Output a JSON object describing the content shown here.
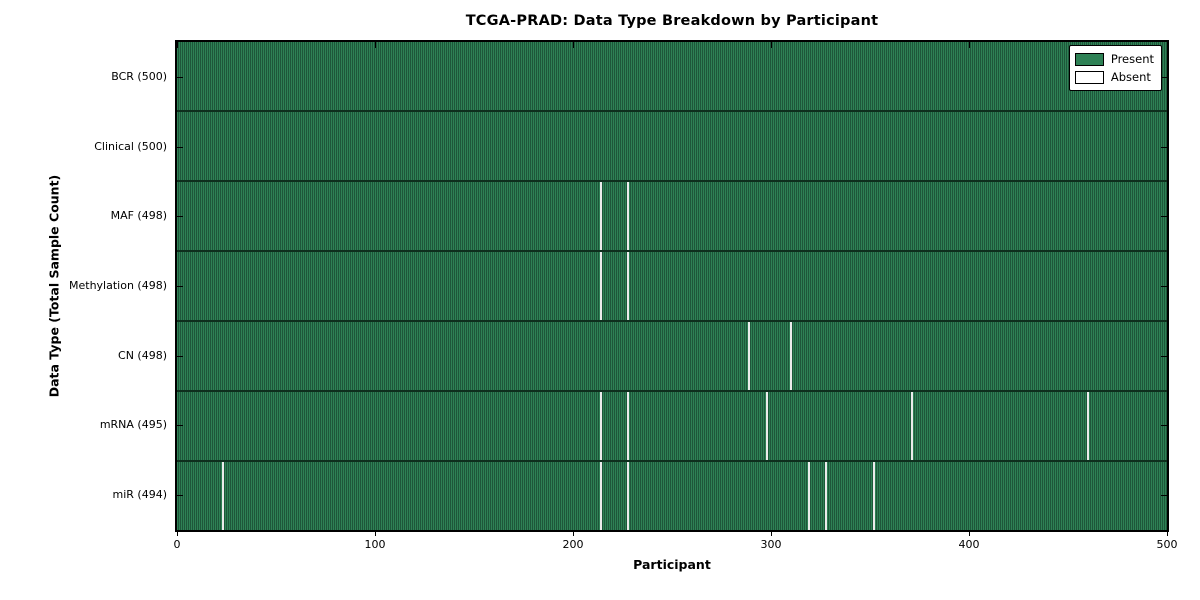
{
  "chart_data": {
    "type": "heatmap",
    "title": "TCGA-PRAD: Data Type Breakdown by Participant",
    "xlabel": "Participant",
    "ylabel": "Data Type (Total Sample Count)",
    "x_min": 0,
    "x_max": 500,
    "x_ticks": [
      0,
      100,
      200,
      300,
      400,
      500
    ],
    "grid": false,
    "legend": {
      "position": "upper-right",
      "entries": [
        {
          "label": "Present",
          "color": "#2e8155"
        },
        {
          "label": "Absent",
          "color": "#ffffff"
        }
      ]
    },
    "rows": [
      {
        "label": "BCR (500)",
        "total": 500,
        "absent_participants": []
      },
      {
        "label": "Clinical (500)",
        "total": 500,
        "absent_participants": []
      },
      {
        "label": "MAF (498)",
        "total": 498,
        "absent_participants": [
          214,
          228
        ]
      },
      {
        "label": "Methylation (498)",
        "total": 498,
        "absent_participants": [
          214,
          228
        ]
      },
      {
        "label": "CN (498)",
        "total": 498,
        "absent_participants": [
          289,
          310
        ]
      },
      {
        "label": "mRNA (495)",
        "total": 495,
        "absent_participants": [
          214,
          228,
          298,
          371,
          460
        ]
      },
      {
        "label": "miR (494)",
        "total": 494,
        "absent_participants": [
          23,
          214,
          228,
          319,
          328,
          352
        ]
      }
    ],
    "colors": {
      "present": "#2e8155",
      "present_dark": "#1e573a",
      "absent_gap": "#ececec",
      "row_divider": "#0e2f1d",
      "frame": "#000000"
    }
  }
}
